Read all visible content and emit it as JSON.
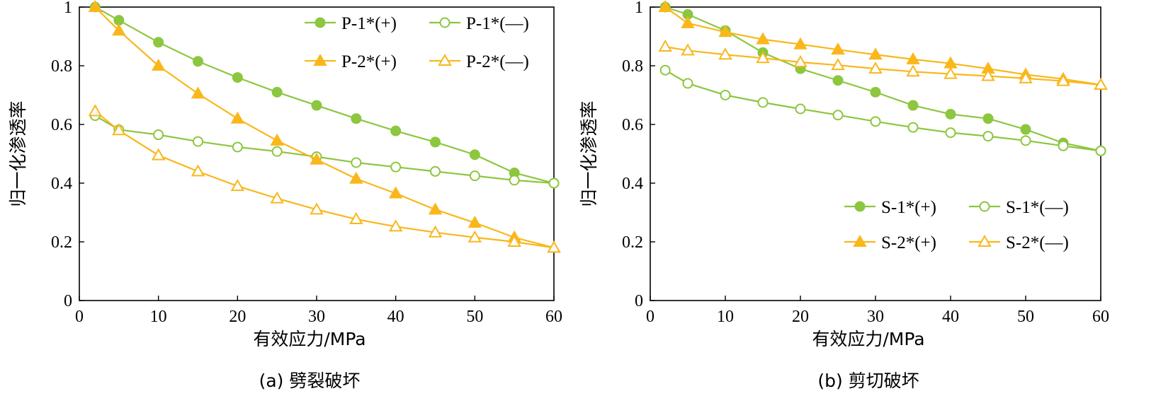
{
  "colors": {
    "green": "#8DC63F",
    "orange": "#F9B71B",
    "axis": "#000000"
  },
  "chart_data": [
    {
      "id": "a",
      "type": "line",
      "caption": "(a) 劈裂破坏",
      "xlabel": "有效应力/MPa",
      "ylabel": "归一化渗透率",
      "xlim": [
        0,
        60
      ],
      "ylim": [
        0,
        1
      ],
      "xticks": [
        0,
        10,
        20,
        30,
        40,
        50,
        60
      ],
      "yticks": [
        0,
        0.2,
        0.4,
        0.6,
        0.8,
        1
      ],
      "xtick_labels": [
        "0",
        "10",
        "20",
        "30",
        "40",
        "50",
        "60"
      ],
      "ytick_labels": [
        "0",
        "0.2",
        "0.4",
        "0.6",
        "0.8",
        "1"
      ],
      "legend_position": "top-right",
      "legend_columns": 2,
      "series": [
        {
          "name": "P-1*(+)",
          "color": "green",
          "marker": "circle-filled",
          "x": [
            2,
            5,
            10,
            15,
            20,
            25,
            30,
            35,
            40,
            45,
            50,
            55,
            60
          ],
          "y": [
            1.0,
            0.955,
            0.88,
            0.815,
            0.76,
            0.71,
            0.665,
            0.62,
            0.578,
            0.54,
            0.497,
            0.435,
            0.4
          ]
        },
        {
          "name": "P-1*(—)",
          "color": "green",
          "marker": "circle-open",
          "x": [
            2,
            5,
            10,
            15,
            20,
            25,
            30,
            35,
            40,
            45,
            50,
            55,
            60
          ],
          "y": [
            0.63,
            0.582,
            0.565,
            0.542,
            0.523,
            0.508,
            0.49,
            0.47,
            0.455,
            0.44,
            0.425,
            0.41,
            0.4
          ]
        },
        {
          "name": "P-2*(+)",
          "color": "orange",
          "marker": "triangle-filled",
          "x": [
            2,
            5,
            10,
            15,
            20,
            25,
            30,
            35,
            40,
            45,
            50,
            55,
            60
          ],
          "y": [
            1.0,
            0.92,
            0.8,
            0.705,
            0.62,
            0.545,
            0.48,
            0.415,
            0.365,
            0.31,
            0.265,
            0.215,
            0.18
          ]
        },
        {
          "name": "P-2*(—)",
          "color": "orange",
          "marker": "triangle-open",
          "x": [
            2,
            5,
            10,
            15,
            20,
            25,
            30,
            35,
            40,
            45,
            50,
            55,
            60
          ],
          "y": [
            0.645,
            0.58,
            0.495,
            0.44,
            0.39,
            0.348,
            0.31,
            0.277,
            0.252,
            0.232,
            0.215,
            0.2,
            0.18
          ]
        }
      ]
    },
    {
      "id": "b",
      "type": "line",
      "caption": "(b) 剪切破坏",
      "xlabel": "有效应力/MPa",
      "ylabel": "归一化渗透率",
      "xlim": [
        0,
        60
      ],
      "ylim": [
        0,
        1
      ],
      "xticks": [
        0,
        10,
        20,
        30,
        40,
        50,
        60
      ],
      "yticks": [
        0,
        0.2,
        0.4,
        0.6,
        0.8,
        1
      ],
      "xtick_labels": [
        "0",
        "10",
        "20",
        "30",
        "40",
        "50",
        "60"
      ],
      "ytick_labels": [
        "0",
        "0.2",
        "0.4",
        "0.6",
        "0.8",
        "1"
      ],
      "legend_position": "bottom-right",
      "legend_columns": 2,
      "series": [
        {
          "name": "S-1*(+)",
          "color": "green",
          "marker": "circle-filled",
          "x": [
            2,
            5,
            10,
            15,
            20,
            25,
            30,
            35,
            40,
            45,
            50,
            55,
            60
          ],
          "y": [
            1.0,
            0.975,
            0.92,
            0.845,
            0.79,
            0.75,
            0.71,
            0.665,
            0.635,
            0.62,
            0.583,
            0.537,
            0.51
          ]
        },
        {
          "name": "S-1*(—)",
          "color": "green",
          "marker": "circle-open",
          "x": [
            2,
            5,
            10,
            15,
            20,
            25,
            30,
            35,
            40,
            45,
            50,
            55,
            60
          ],
          "y": [
            0.785,
            0.74,
            0.7,
            0.675,
            0.653,
            0.632,
            0.61,
            0.59,
            0.572,
            0.56,
            0.545,
            0.527,
            0.51
          ]
        },
        {
          "name": "S-2*(+)",
          "color": "orange",
          "marker": "triangle-filled",
          "x": [
            2,
            5,
            10,
            15,
            20,
            25,
            30,
            35,
            40,
            45,
            50,
            55,
            60
          ],
          "y": [
            1.0,
            0.945,
            0.915,
            0.89,
            0.873,
            0.855,
            0.838,
            0.822,
            0.808,
            0.79,
            0.77,
            0.755,
            0.735
          ]
        },
        {
          "name": "S-2*(—)",
          "color": "orange",
          "marker": "triangle-open",
          "x": [
            2,
            5,
            10,
            15,
            20,
            25,
            30,
            35,
            40,
            45,
            50,
            55,
            60
          ],
          "y": [
            0.865,
            0.852,
            0.838,
            0.826,
            0.812,
            0.802,
            0.79,
            0.78,
            0.772,
            0.765,
            0.757,
            0.748,
            0.735
          ]
        }
      ]
    }
  ]
}
